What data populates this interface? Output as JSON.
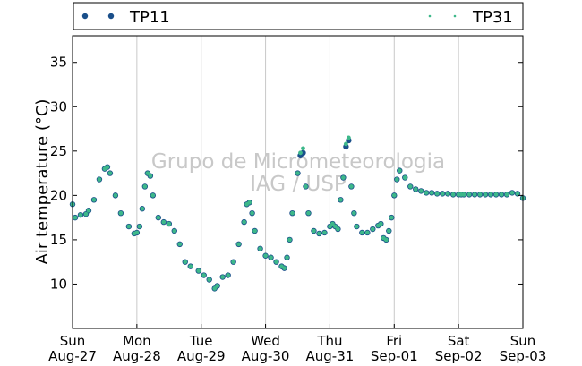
{
  "chart_data": {
    "type": "scatter",
    "title": "",
    "xlabel": "",
    "ylabel": "Air temperature (°C)",
    "x_unit": "hours since Sun Aug-27 00:00",
    "xlim": [
      0,
      168
    ],
    "ylim": [
      5,
      38
    ],
    "yticks": [
      10,
      15,
      20,
      25,
      30,
      35
    ],
    "xticks": [
      {
        "day": "Sun",
        "date": "Aug-27"
      },
      {
        "day": "Mon",
        "date": "Aug-28"
      },
      {
        "day": "Tue",
        "date": "Aug-29"
      },
      {
        "day": "Wed",
        "date": "Aug-30"
      },
      {
        "day": "Thu",
        "date": "Aug-31"
      },
      {
        "day": "Fri",
        "date": "Sep-01"
      },
      {
        "day": "Sat",
        "date": "Sep-02"
      },
      {
        "day": "Sun",
        "date": "Sep-03"
      }
    ],
    "grid": "vertical",
    "legend_position": "top",
    "watermark": [
      "Grupo de Micrometeorologia",
      "IAG / USP"
    ],
    "series": [
      {
        "name": "TP11",
        "color": "#1a4f8a",
        "marker": "circle",
        "points": [
          [
            0,
            19
          ],
          [
            1,
            17.5
          ],
          [
            3,
            17.8
          ],
          [
            5,
            17.9
          ],
          [
            6,
            18.3
          ],
          [
            8,
            19.5
          ],
          [
            10,
            21.8
          ],
          [
            12,
            23
          ],
          [
            13,
            23.2
          ],
          [
            14,
            22.5
          ],
          [
            16,
            20
          ],
          [
            18,
            18
          ],
          [
            21,
            16.5
          ],
          [
            23,
            15.7
          ],
          [
            24,
            15.8
          ],
          [
            25,
            16.5
          ],
          [
            26,
            18.5
          ],
          [
            27,
            21
          ],
          [
            28,
            22.5
          ],
          [
            29,
            22.2
          ],
          [
            30,
            20
          ],
          [
            32,
            17.5
          ],
          [
            34,
            17
          ],
          [
            36,
            16.8
          ],
          [
            38,
            16
          ],
          [
            40,
            14.5
          ],
          [
            42,
            12.5
          ],
          [
            44,
            12
          ],
          [
            47,
            11.5
          ],
          [
            49,
            11
          ],
          [
            51,
            10.5
          ],
          [
            53,
            9.5
          ],
          [
            54,
            9.8
          ],
          [
            56,
            10.8
          ],
          [
            58,
            11
          ],
          [
            60,
            12.5
          ],
          [
            62,
            14.5
          ],
          [
            64,
            17
          ],
          [
            65,
            19
          ],
          [
            66,
            19.2
          ],
          [
            67,
            18
          ],
          [
            68,
            16
          ],
          [
            70,
            14
          ],
          [
            72,
            13.2
          ],
          [
            74,
            13
          ],
          [
            76,
            12.5
          ],
          [
            78,
            12
          ],
          [
            79,
            11.8
          ],
          [
            80,
            13
          ],
          [
            81,
            15
          ],
          [
            82,
            18
          ],
          [
            84,
            22.5
          ],
          [
            85,
            24.5
          ],
          [
            86,
            24.8
          ],
          [
            87,
            21
          ],
          [
            88,
            18
          ],
          [
            90,
            16
          ],
          [
            92,
            15.7
          ],
          [
            94,
            15.8
          ],
          [
            96,
            16.5
          ],
          [
            97,
            16.8
          ],
          [
            98,
            16.5
          ],
          [
            99,
            16.2
          ],
          [
            100,
            19.5
          ],
          [
            101,
            22
          ],
          [
            102,
            25.5
          ],
          [
            103,
            26.2
          ],
          [
            104,
            21
          ],
          [
            105,
            18
          ],
          [
            106,
            16.5
          ],
          [
            108,
            15.8
          ],
          [
            110,
            15.8
          ],
          [
            112,
            16.2
          ],
          [
            114,
            16.6
          ],
          [
            115,
            16.8
          ],
          [
            116,
            15.2
          ],
          [
            117,
            15
          ],
          [
            118,
            16
          ],
          [
            119,
            17.5
          ],
          [
            120,
            20
          ],
          [
            121,
            21.8
          ],
          [
            122,
            22.8
          ],
          [
            124,
            22
          ],
          [
            126,
            21
          ],
          [
            128,
            20.7
          ],
          [
            130,
            20.5
          ],
          [
            132,
            20.3
          ],
          [
            134,
            20.3
          ],
          [
            136,
            20.2
          ],
          [
            138,
            20.2
          ],
          [
            140,
            20.2
          ],
          [
            142,
            20.1
          ],
          [
            144,
            20.1
          ],
          [
            145,
            20.1
          ],
          [
            146,
            20.1
          ],
          [
            148,
            20.1
          ],
          [
            150,
            20.1
          ],
          [
            152,
            20.1
          ],
          [
            154,
            20.1
          ],
          [
            156,
            20.1
          ],
          [
            158,
            20.1
          ],
          [
            160,
            20.1
          ],
          [
            162,
            20.1
          ],
          [
            164,
            20.3
          ],
          [
            166,
            20.2
          ],
          [
            168,
            19.7
          ]
        ]
      },
      {
        "name": "TP31",
        "color": "#3db88a",
        "marker": "point",
        "points": [
          [
            0,
            19
          ],
          [
            1,
            17.5
          ],
          [
            3,
            17.8
          ],
          [
            5,
            17.9
          ],
          [
            6,
            18.3
          ],
          [
            8,
            19.5
          ],
          [
            10,
            21.8
          ],
          [
            12,
            23
          ],
          [
            13,
            23.2
          ],
          [
            14,
            22.5
          ],
          [
            16,
            20
          ],
          [
            18,
            18
          ],
          [
            21,
            16.5
          ],
          [
            23,
            15.7
          ],
          [
            24,
            15.8
          ],
          [
            25,
            16.5
          ],
          [
            26,
            18.5
          ],
          [
            27,
            21
          ],
          [
            28,
            22.5
          ],
          [
            29,
            22.2
          ],
          [
            30,
            20
          ],
          [
            32,
            17.5
          ],
          [
            34,
            17
          ],
          [
            36,
            16.8
          ],
          [
            38,
            16
          ],
          [
            40,
            14.5
          ],
          [
            42,
            12.5
          ],
          [
            44,
            12
          ],
          [
            47,
            11.5
          ],
          [
            49,
            11
          ],
          [
            51,
            10.5
          ],
          [
            53,
            9.5
          ],
          [
            54,
            9.8
          ],
          [
            56,
            10.8
          ],
          [
            58,
            11
          ],
          [
            60,
            12.5
          ],
          [
            62,
            14.5
          ],
          [
            64,
            17
          ],
          [
            65,
            19
          ],
          [
            66,
            19.2
          ],
          [
            67,
            18
          ],
          [
            68,
            16
          ],
          [
            70,
            14
          ],
          [
            72,
            13.2
          ],
          [
            74,
            13
          ],
          [
            76,
            12.5
          ],
          [
            78,
            12
          ],
          [
            79,
            11.8
          ],
          [
            80,
            13
          ],
          [
            81,
            15
          ],
          [
            82,
            18
          ],
          [
            84,
            22.5
          ],
          [
            85,
            24.8
          ],
          [
            86,
            25.3
          ],
          [
            87,
            21
          ],
          [
            88,
            18
          ],
          [
            90,
            16
          ],
          [
            92,
            15.7
          ],
          [
            94,
            15.8
          ],
          [
            96,
            16.5
          ],
          [
            97,
            16.8
          ],
          [
            98,
            16.5
          ],
          [
            99,
            16.2
          ],
          [
            100,
            19.5
          ],
          [
            101,
            22
          ],
          [
            102,
            25.8
          ],
          [
            103,
            26.5
          ],
          [
            104,
            21
          ],
          [
            105,
            18
          ],
          [
            106,
            16.5
          ],
          [
            108,
            15.8
          ],
          [
            110,
            15.8
          ],
          [
            112,
            16.2
          ],
          [
            114,
            16.6
          ],
          [
            115,
            16.8
          ],
          [
            116,
            15.2
          ],
          [
            117,
            15
          ],
          [
            118,
            16
          ],
          [
            119,
            17.5
          ],
          [
            120,
            20
          ],
          [
            121,
            21.8
          ],
          [
            122,
            22.8
          ],
          [
            124,
            22
          ],
          [
            126,
            21
          ],
          [
            128,
            20.7
          ],
          [
            130,
            20.5
          ],
          [
            132,
            20.3
          ],
          [
            134,
            20.3
          ],
          [
            136,
            20.2
          ],
          [
            138,
            20.2
          ],
          [
            140,
            20.2
          ],
          [
            142,
            20.1
          ],
          [
            144,
            20.1
          ],
          [
            145,
            20.1
          ],
          [
            146,
            20.1
          ],
          [
            148,
            20.1
          ],
          [
            150,
            20.1
          ],
          [
            152,
            20.1
          ],
          [
            154,
            20.1
          ],
          [
            156,
            20.1
          ],
          [
            158,
            20.1
          ],
          [
            160,
            20.1
          ],
          [
            162,
            20.1
          ],
          [
            164,
            20.3
          ],
          [
            166,
            20.2
          ],
          [
            168,
            19.7
          ]
        ]
      }
    ]
  }
}
